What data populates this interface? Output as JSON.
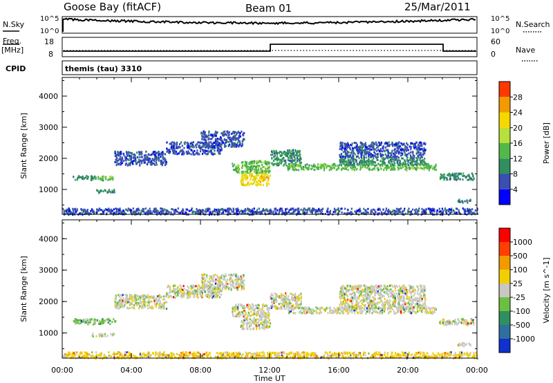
{
  "header": {
    "station": "Goose Bay (fitACF)",
    "beam": "Beam 01",
    "date": "25/Mar/2011"
  },
  "noise_panel": {
    "left_label": "N.Sky",
    "right_label": "N.Search",
    "left_ticks": [
      "10^5",
      "10^0"
    ],
    "right_ticks": [
      "10^5",
      "10^0"
    ]
  },
  "freq_panel": {
    "left_label_1": "Freq.",
    "left_label_2": "[MHz]",
    "left_ticks": [
      "18",
      "8"
    ],
    "right_label": "Nave",
    "right_ticks": [
      "60",
      "0"
    ]
  },
  "cpid": {
    "label": "CPID",
    "value": "themis (tau) 3310"
  },
  "chart_data": [
    {
      "type": "heatmap",
      "name": "power",
      "ylabel": "Slant Range [km]",
      "yticks": [
        "1000",
        "2000",
        "3000",
        "4000"
      ],
      "ylim": [
        200,
        4600
      ],
      "xlim": [
        0,
        24
      ],
      "xticks": [
        "00:00",
        "04:00",
        "08:00",
        "12:00",
        "16:00",
        "20:00",
        "00:00"
      ],
      "colorbar": {
        "label": "Power [dB]",
        "ticks": [
          "4",
          "8",
          "12",
          "16",
          "20",
          "24",
          "28"
        ],
        "colors": [
          "#0000ff",
          "#3a4fb0",
          "#2f8f5f",
          "#52b84a",
          "#b8e03a",
          "#f5d800",
          "#f29a00",
          "#ff3800"
        ]
      },
      "bands": [
        {
          "x": [
            0.6,
            1.9
          ],
          "y": [
            1330,
            1480
          ],
          "level": 2
        },
        {
          "x": [
            1.9,
            3.1
          ],
          "y": [
            1320,
            1450
          ],
          "level": 3
        },
        {
          "x": [
            1.7,
            3.0
          ],
          "y": [
            920,
            1020
          ],
          "level": 2
        },
        {
          "x": [
            3.0,
            6.0
          ],
          "y": [
            1800,
            2250
          ],
          "level": 1
        },
        {
          "x": [
            6.0,
            9.2
          ],
          "y": [
            2150,
            2550
          ],
          "level": 1
        },
        {
          "x": [
            8.0,
            10.5
          ],
          "y": [
            2400,
            2900
          ],
          "level": 1
        },
        {
          "x": [
            9.8,
            12.0
          ],
          "y": [
            1550,
            1950
          ],
          "level": 3
        },
        {
          "x": [
            10.3,
            12.0
          ],
          "y": [
            1150,
            1550
          ],
          "level": 5
        },
        {
          "x": [
            12.0,
            13.8
          ],
          "y": [
            1800,
            2300
          ],
          "level": 2
        },
        {
          "x": [
            13.0,
            21.6
          ],
          "y": [
            1650,
            1850
          ],
          "level": 3
        },
        {
          "x": [
            16.0,
            21.0
          ],
          "y": [
            1800,
            2050
          ],
          "level": 2
        },
        {
          "x": [
            16.0,
            21.0
          ],
          "y": [
            2050,
            2550
          ],
          "level": 1
        },
        {
          "x": [
            21.8,
            23.8
          ],
          "y": [
            1330,
            1550
          ],
          "level": 2
        },
        {
          "x": [
            22.8,
            23.6
          ],
          "y": [
            600,
            720
          ],
          "level": 2
        },
        {
          "x": [
            0.0,
            24.0
          ],
          "y": [
            220,
            420
          ],
          "level": 1
        }
      ]
    },
    {
      "type": "heatmap",
      "name": "velocity",
      "ylabel": "Slant Range [km]",
      "yticks": [
        "1000",
        "2000",
        "3000",
        "4000"
      ],
      "ylim": [
        200,
        4600
      ],
      "xlim": [
        0,
        24
      ],
      "xlabel": "Time UT",
      "xticks": [
        "00:00",
        "04:00",
        "08:00",
        "12:00",
        "16:00",
        "20:00",
        "00:00"
      ],
      "colorbar": {
        "label": "Velocity [m s^-1]",
        "ticks": [
          "1000",
          "500",
          "100",
          "25",
          "-25",
          "-100",
          "-500",
          "-1000"
        ],
        "colors": [
          "#1030d0",
          "#2f6fa0",
          "#2f8f5f",
          "#6cc040",
          "#c8c8c0",
          "#f0d000",
          "#f29a00",
          "#ff4000",
          "#ff0000"
        ]
      },
      "bands": [
        {
          "x": [
            0.6,
            3.1
          ],
          "y": [
            1300,
            1480
          ],
          "level": 3
        },
        {
          "x": [
            1.7,
            3.0
          ],
          "y": [
            920,
            1020
          ],
          "level": 4
        },
        {
          "x": [
            3.0,
            6.0
          ],
          "y": [
            1800,
            2250
          ],
          "level": 4
        },
        {
          "x": [
            6.0,
            9.2
          ],
          "y": [
            2150,
            2550
          ],
          "level": 4
        },
        {
          "x": [
            8.0,
            10.5
          ],
          "y": [
            2400,
            2900
          ],
          "level": 4
        },
        {
          "x": [
            9.8,
            12.0
          ],
          "y": [
            1550,
            1950
          ],
          "level": 4
        },
        {
          "x": [
            10.3,
            12.0
          ],
          "y": [
            1150,
            1550
          ],
          "level": 4
        },
        {
          "x": [
            12.0,
            13.8
          ],
          "y": [
            1800,
            2300
          ],
          "level": 4
        },
        {
          "x": [
            13.0,
            21.6
          ],
          "y": [
            1650,
            1850
          ],
          "level": 4
        },
        {
          "x": [
            16.0,
            21.0
          ],
          "y": [
            1800,
            2550
          ],
          "level": 4
        },
        {
          "x": [
            21.8,
            23.8
          ],
          "y": [
            1280,
            1480
          ],
          "level": 4
        },
        {
          "x": [
            22.8,
            23.6
          ],
          "y": [
            600,
            720
          ],
          "level": 4
        },
        {
          "x": [
            0.0,
            24.0
          ],
          "y": [
            220,
            420
          ],
          "level": 5
        }
      ]
    }
  ]
}
